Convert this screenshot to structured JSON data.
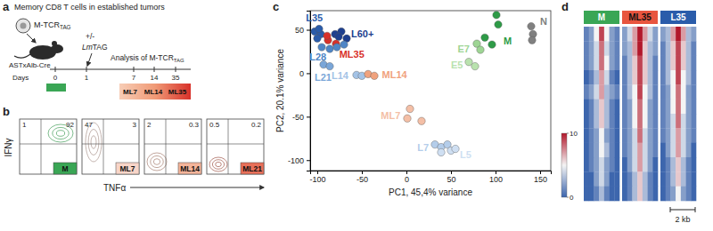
{
  "figure": {
    "panel_a": {
      "letter": "a",
      "title": "Memory CD8 T cells in established tumors",
      "cell_label": "M-TCR",
      "cell_label_sub": "TAG",
      "mouse_label": "ASTxAlb-Cre",
      "treatment_sign": "+/-",
      "treatment": "Lm",
      "treatment_suffix": "TAG",
      "analysis": "Analysis of M-TCR",
      "analysis_sub": "TAG",
      "days_label": "Days",
      "days": [
        0,
        1,
        7,
        14,
        35
      ],
      "start_color": "#3aa655",
      "stages": [
        {
          "name": "ML7",
          "color": "#f7cdb6"
        },
        {
          "name": "ML14",
          "color": "#f09a76"
        },
        {
          "name": "ML35",
          "color": "#d8312a"
        }
      ]
    },
    "panel_b": {
      "letter": "b",
      "y_label": "IFNγ",
      "x_label": "TNFα",
      "plots": [
        {
          "name": "M",
          "color": "#3aa655",
          "upper_left": 1,
          "upper_right": 92
        },
        {
          "name": "ML7",
          "color": "#f8d5c8",
          "upper_left": 47,
          "upper_right": 3
        },
        {
          "name": "ML14",
          "color": "#f4b49a",
          "upper_left": 2,
          "upper_right": 0.3
        },
        {
          "name": "ML21",
          "color": "#e8705a",
          "upper_left": 0.5,
          "upper_right": 0.2
        }
      ]
    },
    "panel_d": {
      "letter": "d",
      "scale_bar": "2 kb",
      "colorbar": {
        "range": [
          0,
          10
        ],
        "ticks": [
          0,
          10
        ]
      },
      "samples": [
        {
          "name": "M",
          "color": "#3aa655",
          "cells": [
            [
              1,
              2,
              5,
              9,
              5,
              2,
              1
            ],
            [
              1,
              2,
              4,
              8,
              4,
              2,
              1
            ],
            [
              1,
              2,
              4,
              8,
              5,
              2,
              1
            ],
            [
              0,
              1,
              3,
              7,
              4,
              1,
              0
            ],
            [
              1,
              2,
              4,
              7,
              3,
              2,
              1
            ],
            [
              0,
              1,
              3,
              6,
              3,
              1,
              0
            ],
            [
              0,
              1,
              3,
              6,
              3,
              1,
              0
            ],
            [
              0,
              1,
              2,
              5,
              2,
              1,
              0
            ],
            [
              0,
              1,
              2,
              5,
              3,
              1,
              0
            ],
            [
              0,
              1,
              2,
              4,
              2,
              1,
              0
            ],
            [
              0,
              0,
              2,
              4,
              2,
              0,
              0
            ],
            [
              0,
              0,
              1,
              3,
              1,
              0,
              0
            ]
          ]
        },
        {
          "name": "ML35",
          "color": "#e8553f",
          "cells": [
            [
              2,
              4,
              7,
              10,
              7,
              4,
              2
            ],
            [
              2,
              3,
              7,
              10,
              6,
              3,
              2
            ],
            [
              1,
              3,
              6,
              9,
              6,
              3,
              1
            ],
            [
              1,
              3,
              6,
              9,
              6,
              3,
              1
            ],
            [
              1,
              3,
              5,
              9,
              5,
              3,
              1
            ],
            [
              1,
              2,
              5,
              8,
              5,
              2,
              1
            ],
            [
              1,
              2,
              5,
              8,
              5,
              2,
              1
            ],
            [
              1,
              2,
              4,
              8,
              4,
              2,
              1
            ],
            [
              1,
              2,
              4,
              7,
              4,
              2,
              1
            ],
            [
              0,
              2,
              4,
              7,
              4,
              2,
              0
            ],
            [
              0,
              1,
              3,
              6,
              3,
              1,
              0
            ],
            [
              0,
              1,
              3,
              6,
              3,
              1,
              0
            ]
          ]
        },
        {
          "name": "L35",
          "color": "#2a5caa",
          "cells": [
            [
              2,
              3,
              7,
              10,
              7,
              3,
              2
            ],
            [
              1,
              3,
              6,
              9,
              6,
              3,
              1
            ],
            [
              1,
              3,
              6,
              9,
              6,
              3,
              1
            ],
            [
              1,
              3,
              5,
              9,
              5,
              3,
              1
            ],
            [
              1,
              2,
              5,
              8,
              5,
              2,
              1
            ],
            [
              1,
              2,
              5,
              8,
              5,
              2,
              1
            ],
            [
              1,
              2,
              4,
              8,
              4,
              2,
              1
            ],
            [
              1,
              2,
              4,
              7,
              4,
              2,
              1
            ],
            [
              0,
              2,
              4,
              7,
              4,
              2,
              0
            ],
            [
              0,
              1,
              3,
              6,
              3,
              1,
              0
            ],
            [
              0,
              1,
              3,
              6,
              3,
              1,
              0
            ],
            [
              0,
              1,
              2,
              5,
              2,
              1,
              0
            ]
          ]
        }
      ]
    }
  },
  "chart_data": {
    "type": "scatter",
    "panel_label": "c",
    "x_label": "PC1, 45,4% variance",
    "y_label": "PC2, 20.1% variance",
    "xlim": [
      -108,
      162
    ],
    "ylim": [
      -112,
      72
    ],
    "xticks": [
      -100,
      -50,
      0,
      50,
      100,
      150
    ],
    "yticks": [
      -100,
      -50,
      0,
      50
    ],
    "series": [
      {
        "name": "L35",
        "color": "#2a5caa",
        "x": [
          -103,
          -96,
          -100,
          -98
        ],
        "values": [
          48,
          45,
          40,
          51
        ]
      },
      {
        "name": "L60+",
        "color": "#1d3f8f",
        "x": [
          -80,
          -73,
          -67,
          -76
        ],
        "values": [
          45,
          48,
          40,
          42
        ]
      },
      {
        "name": "ML35",
        "color": "#d8312a",
        "x": [
          -88,
          -79,
          -89
        ],
        "values": [
          38,
          34,
          43
        ]
      },
      {
        "name": "L28",
        "color": "#4f86c6",
        "x": [
          -95,
          -86,
          -78,
          -70
        ],
        "values": [
          30,
          28,
          30,
          33
        ]
      },
      {
        "name": "L21",
        "color": "#7aa6d8",
        "x": [
          -93,
          -86
        ],
        "values": [
          10,
          8
        ]
      },
      {
        "name": "L14",
        "color": "#a4c3e6",
        "x": [
          -56,
          -50
        ],
        "values": [
          -2,
          -3
        ]
      },
      {
        "name": "ML14",
        "color": "#f0a27d",
        "x": [
          -43,
          -36
        ],
        "values": [
          -1,
          -3
        ]
      },
      {
        "name": "ML7",
        "color": "#f4bfa6",
        "x": [
          4,
          1,
          17
        ],
        "values": [
          -41,
          -52,
          -55
        ]
      },
      {
        "name": "L7",
        "color": "#b4cdea",
        "x": [
          32,
          39,
          46
        ],
        "values": [
          -82,
          -85,
          -82
        ]
      },
      {
        "name": "L5",
        "color": "#cfdff2",
        "x": [
          39,
          50,
          55
        ],
        "values": [
          -91,
          -89,
          -87
        ]
      },
      {
        "name": "E7",
        "color": "#9ed594",
        "x": [
          79,
          83
        ],
        "values": [
          34,
          27
        ]
      },
      {
        "name": "E5",
        "color": "#b9e2ae",
        "x": [
          70,
          77
        ],
        "values": [
          13,
          8
        ]
      },
      {
        "name": "M",
        "color": "#2e9b47",
        "x": [
          101,
          103,
          96,
          88
        ],
        "values": [
          67,
          56,
          33,
          41
        ]
      },
      {
        "name": "N",
        "color": "#808080",
        "x": [
          140,
          142,
          141
        ],
        "values": [
          54,
          45,
          38
        ]
      }
    ]
  }
}
